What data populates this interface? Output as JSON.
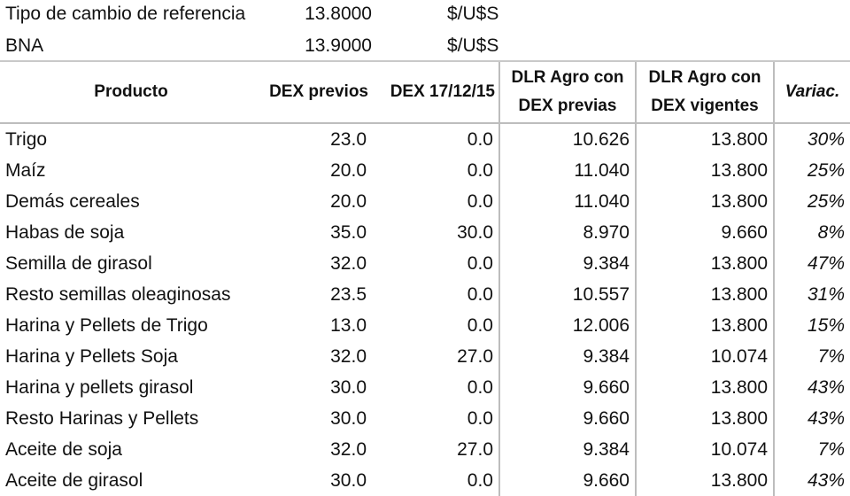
{
  "reference": {
    "tipo_label": "Tipo de cambio de referencia",
    "tipo_value": "13.8000",
    "tipo_unit": "$/U$S",
    "bna_label": "BNA",
    "bna_value": "13.9000",
    "bna_unit": "$/U$S"
  },
  "table": {
    "headers": {
      "producto": "Producto",
      "dex_previos": "DEX previos",
      "dex_date": "DEX 17/12/15",
      "dlr_previas_l1": "DLR Agro con",
      "dlr_previas_l2": "DEX previas",
      "dlr_vigentes_l1": "DLR Agro con",
      "dlr_vigentes_l2": "DEX vigentes",
      "variac": "Variac."
    },
    "rows": [
      {
        "producto": "Trigo",
        "dex_previos": "23.0",
        "dex_date": "0.0",
        "dlr_previas": "10.626",
        "dlr_vigentes": "13.800",
        "variac": "30%"
      },
      {
        "producto": "Maíz",
        "dex_previos": "20.0",
        "dex_date": "0.0",
        "dlr_previas": "11.040",
        "dlr_vigentes": "13.800",
        "variac": "25%"
      },
      {
        "producto": "Demás cereales",
        "dex_previos": "20.0",
        "dex_date": "0.0",
        "dlr_previas": "11.040",
        "dlr_vigentes": "13.800",
        "variac": "25%"
      },
      {
        "producto": "Habas de soja",
        "dex_previos": "35.0",
        "dex_date": "30.0",
        "dlr_previas": "8.970",
        "dlr_vigentes": "9.660",
        "variac": "8%"
      },
      {
        "producto": "Semilla de girasol",
        "dex_previos": "32.0",
        "dex_date": "0.0",
        "dlr_previas": "9.384",
        "dlr_vigentes": "13.800",
        "variac": "47%"
      },
      {
        "producto": "Resto semillas oleaginosas",
        "dex_previos": "23.5",
        "dex_date": "0.0",
        "dlr_previas": "10.557",
        "dlr_vigentes": "13.800",
        "variac": "31%"
      },
      {
        "producto": "Harina y Pellets de Trigo",
        "dex_previos": "13.0",
        "dex_date": "0.0",
        "dlr_previas": "12.006",
        "dlr_vigentes": "13.800",
        "variac": "15%"
      },
      {
        "producto": "Harina y Pellets Soja",
        "dex_previos": "32.0",
        "dex_date": "27.0",
        "dlr_previas": "9.384",
        "dlr_vigentes": "10.074",
        "variac": "7%"
      },
      {
        "producto": "Harina y pellets  girasol",
        "dex_previos": "30.0",
        "dex_date": "0.0",
        "dlr_previas": "9.660",
        "dlr_vigentes": "13.800",
        "variac": "43%"
      },
      {
        "producto": "Resto Harinas y Pellets",
        "dex_previos": "30.0",
        "dex_date": "0.0",
        "dlr_previas": "9.660",
        "dlr_vigentes": "13.800",
        "variac": "43%"
      },
      {
        "producto": "Aceite de soja",
        "dex_previos": "32.0",
        "dex_date": "27.0",
        "dlr_previas": "9.384",
        "dlr_vigentes": "10.074",
        "variac": "7%"
      },
      {
        "producto": "Aceite de girasol",
        "dex_previos": "30.0",
        "dex_date": "0.0",
        "dlr_previas": "9.660",
        "dlr_vigentes": "13.800",
        "variac": "43%"
      }
    ]
  }
}
